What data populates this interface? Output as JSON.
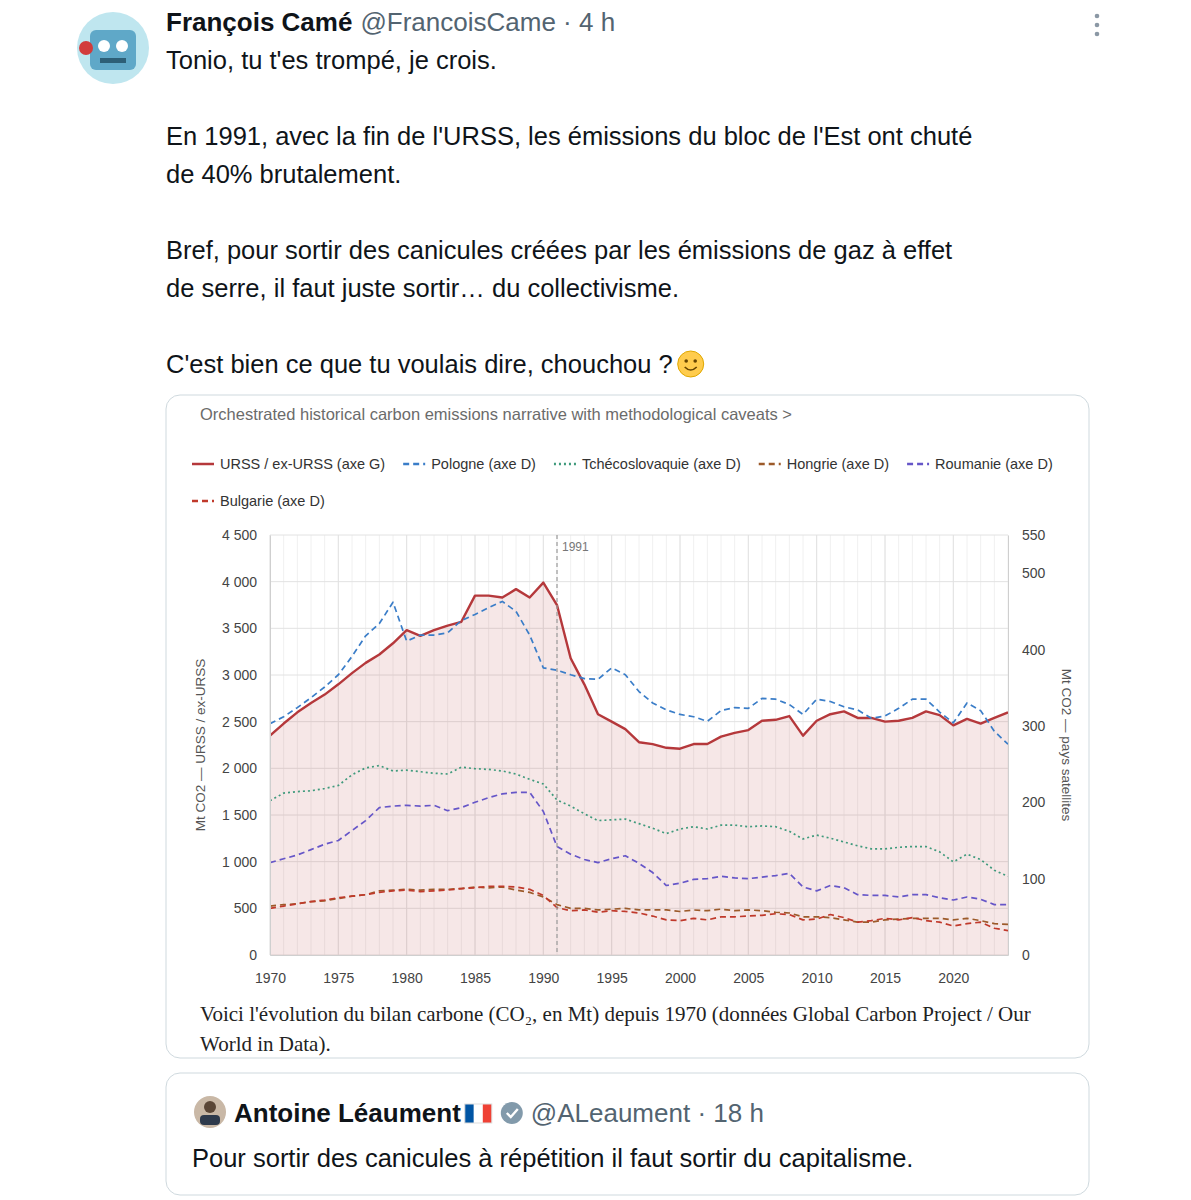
{
  "post": {
    "author": "François Camé",
    "meta": "@FrancoisCame · 4 h",
    "paragraphs": [
      [
        "Tonio, tu t'es trompé, je crois."
      ],
      [
        "En 1991, avec la fin de l'URSS, les émissions du bloc de l'Est ont chuté",
        "de 40% brutalement."
      ],
      [
        "Bref, pour sortir des canicules créées par les émissions de gaz à effet",
        "de serre, il faut juste sortir… du collectivisme."
      ],
      [
        "C'est bien ce que tu voulais dire, chouchou ?"
      ]
    ]
  },
  "chart_data": {
    "type": "line",
    "title": "Orchestrated historical carbon emissions narrative with methodological caveats >",
    "caption": "Voici l'évolution du bilan carbone (CO₂, en Mt) depuis 1970 (données Global Carbon Project / Our World in Data).",
    "ylabel": "Mt CO2 — URSS / ex-URSS",
    "y2label": "Mt CO2 — pays satellites",
    "legend": "top",
    "grid": true,
    "x": [
      1970,
      1971,
      1972,
      1973,
      1974,
      1975,
      1976,
      1977,
      1978,
      1979,
      1980,
      1981,
      1982,
      1983,
      1984,
      1985,
      1986,
      1987,
      1988,
      1989,
      1990,
      1991,
      1992,
      1993,
      1994,
      1995,
      1996,
      1997,
      1998,
      1999,
      2000,
      2001,
      2002,
      2003,
      2004,
      2005,
      2006,
      2007,
      2008,
      2009,
      2010,
      2011,
      2012,
      2013,
      2014,
      2015,
      2016,
      2017,
      2018,
      2019,
      2020,
      2021,
      2022,
      2023,
      2024
    ],
    "xlim": [
      1970,
      2024
    ],
    "xticks": [
      1970,
      1975,
      1980,
      1985,
      1990,
      1995,
      2000,
      2005,
      2010,
      2015,
      2020
    ],
    "ylim": [
      0,
      4500
    ],
    "yticks": [
      0,
      500,
      {
        "value": 1000,
        "label": "1 000"
      },
      {
        "value": 1500,
        "label": "1 500"
      },
      {
        "value": 2000,
        "label": "2 000"
      },
      {
        "value": 2500,
        "label": "2 500"
      },
      {
        "value": 3000,
        "label": "3 000"
      },
      {
        "value": 3500,
        "label": "3 500"
      },
      {
        "value": 4000,
        "label": "4 000"
      },
      {
        "value": 4500,
        "label": "4 500"
      }
    ],
    "y2lim": [
      0,
      550
    ],
    "y2ticks": [
      0,
      100,
      200,
      300,
      400,
      500,
      550
    ],
    "annotations": [
      {
        "x": 1991,
        "text": "1991"
      }
    ],
    "series": [
      {
        "name": "URSS / ex-URSS (axe G)",
        "color": "#b5383b",
        "type": "area",
        "line_style": "solid",
        "values": [
          2350,
          2480,
          2600,
          2700,
          2790,
          2900,
          3020,
          3130,
          3220,
          3340,
          3480,
          3420,
          3480,
          3530,
          3570,
          3850,
          3850,
          3830,
          3920,
          3830,
          3990,
          3750,
          3180,
          2900,
          2580,
          2500,
          2420,
          2280,
          2260,
          2220,
          2210,
          2260,
          2260,
          2340,
          2380,
          2410,
          2510,
          2520,
          2560,
          2350,
          2510,
          2580,
          2610,
          2540,
          2540,
          2500,
          2510,
          2540,
          2610,
          2570,
          2460,
          2530,
          2480,
          2540,
          2600
        ]
      },
      {
        "name": "Pologne (axe D)",
        "color": "#3a7dc8",
        "axis": "y2",
        "line_style": "dashed",
        "values": [
          303,
          312,
          324,
          337,
          351,
          367,
          391,
          418,
          434,
          462,
          411,
          419,
          419,
          422,
          438,
          446,
          455,
          463,
          450,
          419,
          376,
          373,
          367,
          362,
          361,
          376,
          367,
          345,
          330,
          321,
          315,
          312,
          306,
          320,
          324,
          323,
          336,
          335,
          328,
          315,
          335,
          332,
          325,
          321,
          310,
          313,
          323,
          335,
          335,
          318,
          304,
          330,
          320,
          293,
          276
        ]
      },
      {
        "name": "Tchécoslovaquie (axe D)",
        "color": "#3f9a7c",
        "axis": "y2",
        "line_style": "dotted",
        "values": [
          202,
          212,
          214,
          215,
          218,
          222,
          236,
          245,
          248,
          241,
          242,
          240,
          238,
          237,
          246,
          244,
          243,
          241,
          237,
          230,
          224,
          203,
          195,
          185,
          176,
          177,
          178,
          172,
          166,
          159,
          165,
          168,
          165,
          170,
          170,
          168,
          169,
          168,
          162,
          152,
          157,
          153,
          148,
          143,
          139,
          139,
          141,
          142,
          142,
          135,
          122,
          132,
          125,
          111,
          103
        ]
      },
      {
        "name": "Hongrie (axe D)",
        "color": "#9c5a2a",
        "axis": "y2",
        "line_style": "dashed",
        "values": [
          64,
          66,
          67,
          70,
          71,
          74,
          77,
          79,
          84,
          85,
          86,
          85,
          86,
          86,
          87,
          89,
          88,
          89,
          85,
          82,
          76,
          66,
          61,
          61,
          59,
          60,
          61,
          59,
          59,
          59,
          57,
          59,
          58,
          60,
          58,
          59,
          58,
          56,
          55,
          50,
          50,
          49,
          46,
          43,
          43,
          46,
          47,
          48,
          48,
          48,
          46,
          48,
          45,
          41,
          40
        ]
      },
      {
        "name": "Roumanie (axe D)",
        "color": "#6656c8",
        "axis": "y2",
        "line_style": "dashed",
        "values": [
          121,
          126,
          131,
          138,
          145,
          150,
          163,
          176,
          193,
          195,
          196,
          195,
          196,
          189,
          193,
          200,
          206,
          211,
          213,
          213,
          188,
          142,
          132,
          125,
          121,
          126,
          130,
          120,
          108,
          91,
          94,
          99,
          100,
          103,
          101,
          100,
          102,
          104,
          107,
          89,
          84,
          91,
          88,
          79,
          78,
          78,
          76,
          79,
          79,
          75,
          72,
          76,
          73,
          66,
          66
        ]
      },
      {
        "name": "Bulgarie (axe D)",
        "color": "#c0392b",
        "axis": "y2",
        "line_style": "dashed",
        "values": [
          61,
          64,
          67,
          70,
          72,
          75,
          77,
          79,
          82,
          84,
          85,
          83,
          84,
          85,
          87,
          88,
          90,
          90,
          89,
          86,
          78,
          62,
          58,
          59,
          56,
          58,
          57,
          55,
          51,
          46,
          45,
          48,
          46,
          50,
          50,
          51,
          52,
          54,
          53,
          46,
          47,
          53,
          49,
          43,
          45,
          48,
          46,
          49,
          45,
          43,
          38,
          41,
          43,
          35,
          32
        ]
      }
    ]
  },
  "quoted_post": {
    "author": "Antoine Léaument",
    "meta": "@ALeaument · 18 h",
    "text": "Pour sortir des canicules à répétition il faut sortir du capitalisme."
  }
}
